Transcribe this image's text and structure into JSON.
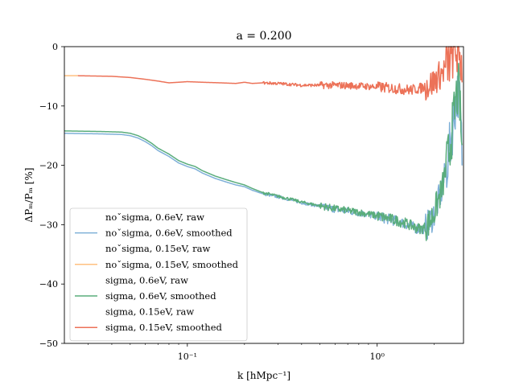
{
  "chart_data": {
    "type": "line",
    "title": "a = 0.200",
    "xlabel": "k [hMpc⁻¹]",
    "ylabel": "ΔPₘ/Pₘ [%]",
    "xscale": "log",
    "xlim": [
      0.0225,
      2.85
    ],
    "ylim": [
      -50,
      0
    ],
    "yticks": [
      0,
      -10,
      -20,
      -30,
      -40,
      -50
    ],
    "ytick_labels": [
      "0",
      "−10",
      "−20",
      "−30",
      "−40",
      "−50"
    ],
    "xticks": [
      0.1,
      1
    ],
    "xtick_labels": [
      "10⁻¹",
      "10⁰"
    ],
    "grid": false,
    "legend_position": "lower-left",
    "series": [
      {
        "name": "noˇsigma, 0.6eV, raw",
        "color": "#1f77b4",
        "opacity": 0.0,
        "noisy": false,
        "x": [],
        "y": []
      },
      {
        "name": "noˇsigma, 0.6eV, smoothed",
        "color": "#7fb0d8",
        "opacity": 1.0,
        "noisy": true,
        "x": [
          0.0225,
          0.035,
          0.045,
          0.05,
          0.055,
          0.06,
          0.065,
          0.07,
          0.08,
          0.09,
          0.1,
          0.11,
          0.12,
          0.14,
          0.16,
          0.18,
          0.2,
          0.22,
          0.25,
          0.3,
          0.35,
          0.4,
          0.5,
          0.6,
          0.8,
          1.0,
          1.2,
          1.4,
          1.6,
          1.7,
          1.8,
          1.9,
          2.0,
          2.1,
          2.2,
          2.3,
          2.4,
          2.5,
          2.6,
          2.7,
          2.8
        ],
        "y": [
          -14.6,
          -14.7,
          -14.8,
          -15.0,
          -15.4,
          -16.0,
          -16.7,
          -17.5,
          -18.5,
          -19.6,
          -20.2,
          -20.6,
          -21.3,
          -22.2,
          -22.8,
          -23.3,
          -23.6,
          -24.2,
          -24.8,
          -25.3,
          -25.8,
          -26.3,
          -26.9,
          -27.4,
          -28.0,
          -28.6,
          -29.2,
          -29.8,
          -30.6,
          -30.8,
          -30.5,
          -29.5,
          -28.0,
          -26.0,
          -24.0,
          -21.0,
          -17.5,
          -13.5,
          -9.0,
          -7.0,
          -18.0
        ]
      },
      {
        "name": "noˇsigma, 0.15eV, raw",
        "color": "#ff7f0e",
        "opacity": 0.0,
        "noisy": false,
        "x": [],
        "y": []
      },
      {
        "name": "noˇsigma, 0.15eV, smoothed",
        "color": "#ffc080",
        "opacity": 1.0,
        "noisy": false,
        "x": [
          0.0225,
          0.0265
        ],
        "y": [
          -4.9,
          -4.9
        ]
      },
      {
        "name": "sigma, 0.6eV, raw",
        "color": "#2ca02c",
        "opacity": 0.0,
        "noisy": false,
        "x": [],
        "y": []
      },
      {
        "name": "sigma, 0.6eV, smoothed",
        "color": "#5aad7c",
        "opacity": 1.0,
        "noisy": true,
        "x": [
          0.0225,
          0.035,
          0.045,
          0.05,
          0.055,
          0.06,
          0.065,
          0.07,
          0.08,
          0.09,
          0.1,
          0.11,
          0.12,
          0.14,
          0.16,
          0.18,
          0.2,
          0.22,
          0.25,
          0.3,
          0.35,
          0.4,
          0.5,
          0.6,
          0.8,
          1.0,
          1.2,
          1.4,
          1.6,
          1.7,
          1.8,
          1.9,
          2.0,
          2.1,
          2.2,
          2.3,
          2.4,
          2.5,
          2.6,
          2.7,
          2.8
        ],
        "y": [
          -14.2,
          -14.3,
          -14.4,
          -14.6,
          -15.0,
          -15.6,
          -16.3,
          -17.1,
          -18.1,
          -19.2,
          -19.8,
          -20.2,
          -20.9,
          -21.8,
          -22.4,
          -22.9,
          -23.3,
          -23.9,
          -24.6,
          -25.2,
          -25.7,
          -26.2,
          -26.8,
          -27.3,
          -27.9,
          -28.5,
          -29.1,
          -29.7,
          -30.5,
          -30.7,
          -30.4,
          -29.4,
          -27.9,
          -25.9,
          -23.9,
          -20.9,
          -17.4,
          -13.4,
          -8.9,
          -6.9,
          -17.9
        ]
      },
      {
        "name": "sigma, 0.15eV, raw",
        "color": "#d62728",
        "opacity": 0.0,
        "noisy": false,
        "x": [],
        "y": []
      },
      {
        "name": "sigma, 0.15eV, smoothed",
        "color": "#ec7258",
        "opacity": 1.0,
        "noisy": true,
        "x": [
          0.0265,
          0.04,
          0.05,
          0.06,
          0.07,
          0.08,
          0.09,
          0.1,
          0.12,
          0.15,
          0.18,
          0.2,
          0.22,
          0.25,
          0.3,
          0.4,
          0.5,
          0.6,
          0.8,
          1.0,
          1.2,
          1.5,
          1.7,
          1.9,
          2.0,
          2.1,
          2.2,
          2.3,
          2.4,
          2.5,
          2.6,
          2.7,
          2.8
        ],
        "y": [
          -4.9,
          -5.0,
          -5.2,
          -5.5,
          -5.8,
          -6.1,
          -6.0,
          -5.9,
          -6.0,
          -6.1,
          -6.2,
          -6.0,
          -6.2,
          -6.1,
          -6.2,
          -6.5,
          -6.5,
          -6.5,
          -6.6,
          -6.8,
          -7.0,
          -7.3,
          -7.0,
          -6.4,
          -5.9,
          -5.0,
          -4.5,
          -3.5,
          -2.5,
          -1.2,
          -0.5,
          -1.5,
          -3.0
        ]
      }
    ]
  }
}
